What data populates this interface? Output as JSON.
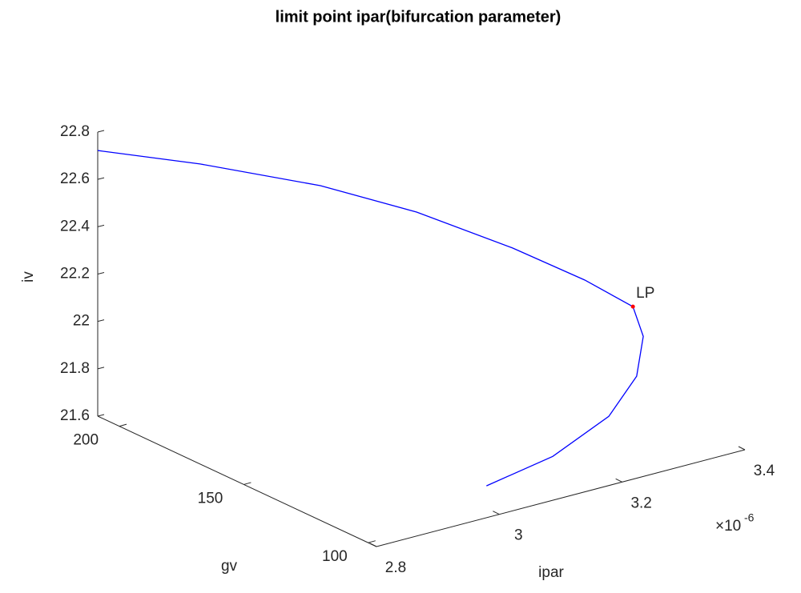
{
  "chart_data": {
    "type": "line3d",
    "title": "limit point ipar(bifurcation parameter)",
    "xlabel": "ipar",
    "ylabel": "gv",
    "zlabel": "iv",
    "x_multiplier": {
      "base": "×10",
      "exponent": "-6"
    },
    "xlim": [
      2.8,
      3.4
    ],
    "ylim": [
      96.7,
      208.7
    ],
    "zlim": [
      21.6,
      22.8
    ],
    "xticks": [
      2.8,
      3,
      3.2,
      3.4
    ],
    "yticks": [
      100,
      150,
      200
    ],
    "zticks": [
      21.6,
      21.8,
      22,
      22.2,
      22.4,
      22.6,
      22.8
    ],
    "series": [
      {
        "color": "#0000ff",
        "x": [
          2.8,
          2.92,
          3.052,
          3.16,
          3.268,
          3.34,
          3.37,
          3.352,
          3.31,
          3.25,
          3.16,
          3.05
        ],
        "y": [
          208.7,
          197.2,
          181.4,
          169.4,
          157.5,
          146.3,
          134.3,
          125.7,
          118.0,
          114.4,
          114.7,
          114.2
        ],
        "z": [
          22.722,
          22.64,
          22.536,
          22.41,
          22.243,
          22.114,
          22.04,
          21.969,
          21.867,
          21.756,
          21.647,
          21.6
        ]
      }
    ],
    "lp": {
      "label": "LP",
      "color": "#ff0000",
      "x": 3.37,
      "y": 134.3,
      "z": 22.04
    }
  }
}
